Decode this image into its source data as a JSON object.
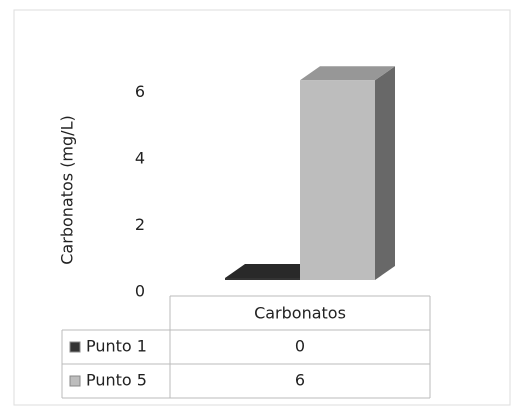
{
  "chart_data": {
    "type": "bar3d",
    "y_axis_label": "Carbonatos (mg/L)",
    "categories": [
      "Carbonatos"
    ],
    "series": [
      {
        "name": "Punto 1",
        "color": "#333333",
        "values": [
          0
        ]
      },
      {
        "name": "Punto 5",
        "color": "#bdbdbd",
        "values": [
          6
        ]
      }
    ],
    "ylim": [
      0,
      7
    ],
    "yticks": [
      0,
      2,
      4,
      6
    ],
    "data_table": true
  }
}
